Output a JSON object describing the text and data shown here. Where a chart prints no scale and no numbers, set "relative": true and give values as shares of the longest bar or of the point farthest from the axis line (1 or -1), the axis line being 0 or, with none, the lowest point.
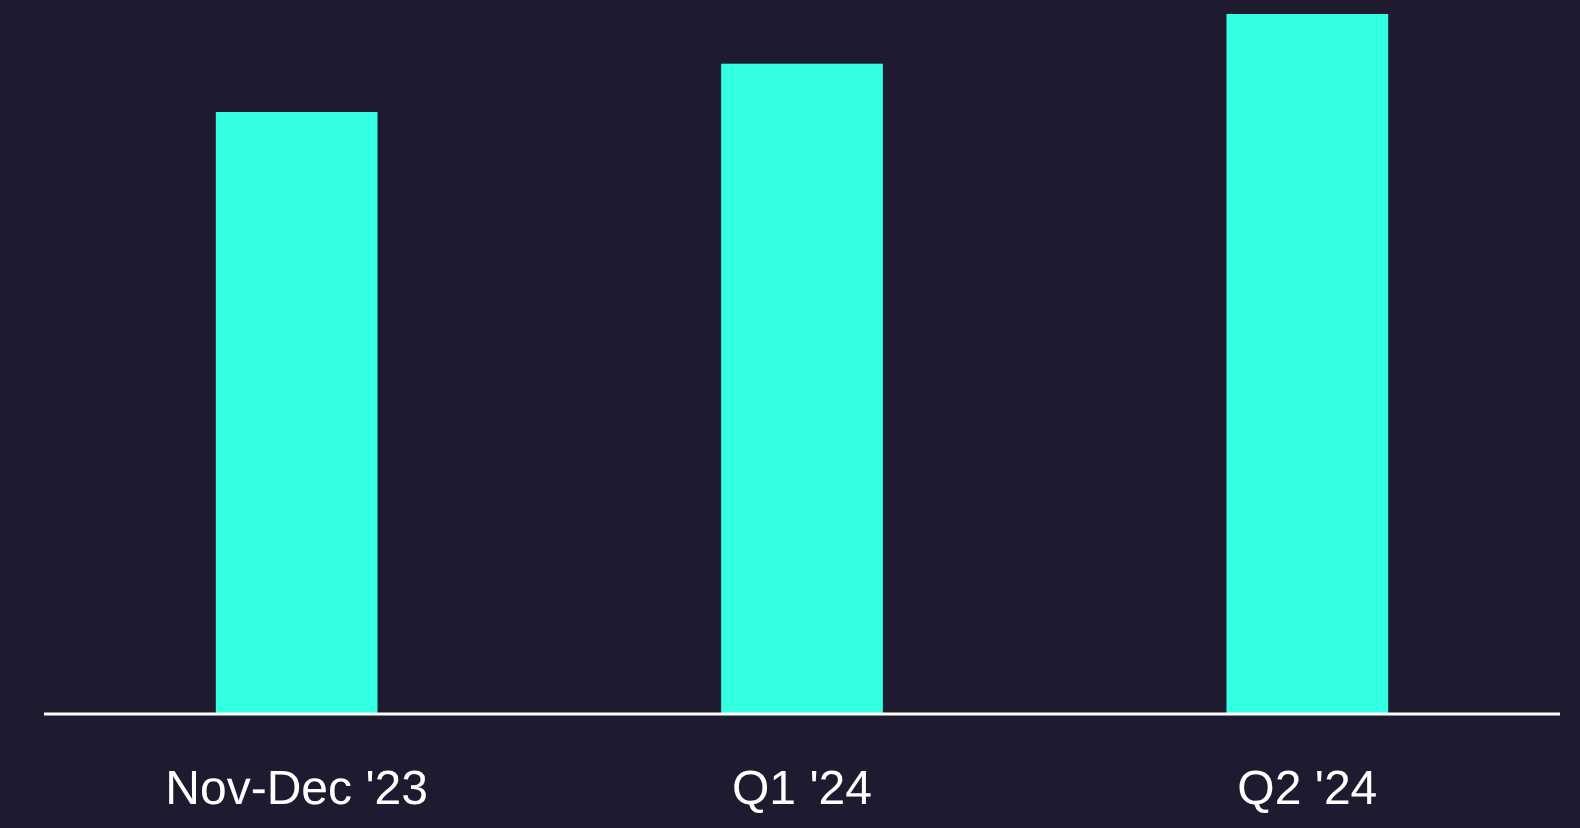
{
  "chart_data": {
    "type": "bar",
    "categories": [
      "Nov-Dec '23",
      "Q1 '24",
      "Q2 '24"
    ],
    "values": [
      0.86,
      0.929,
      1
    ],
    "color": "#33ffe3",
    "relative": true
  }
}
